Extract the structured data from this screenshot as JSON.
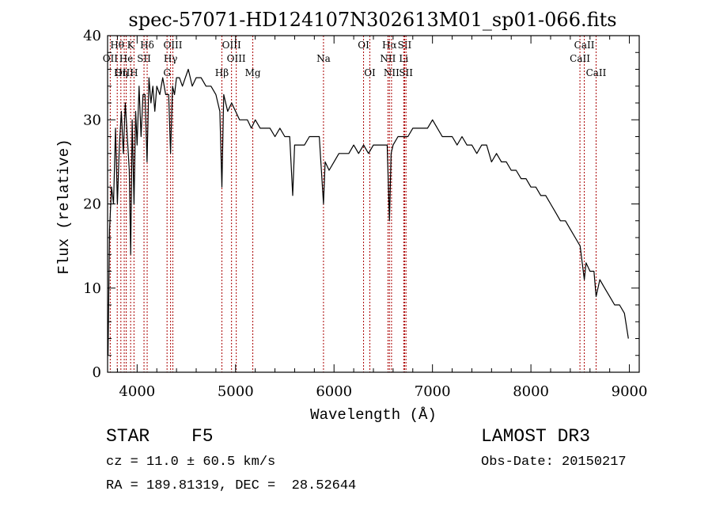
{
  "chart_data": {
    "type": "line",
    "title": "spec-57071-HD124107N302613M01_sp01-066.fits",
    "xlabel": "Wavelength (Å)",
    "ylabel": "Flux (relative)",
    "xlim": [
      3700,
      9100
    ],
    "ylim": [
      0,
      40
    ],
    "xticks": [
      4000,
      5000,
      6000,
      7000,
      8000,
      9000
    ],
    "yticks": [
      0,
      10,
      20,
      30,
      40
    ],
    "line_color": "#000000",
    "marker_color": "#aa0000",
    "series": [
      {
        "name": "spectrum",
        "x": [
          3705,
          3720,
          3740,
          3760,
          3780,
          3800,
          3820,
          3840,
          3860,
          3880,
          3900,
          3920,
          3935,
          3950,
          3968,
          3985,
          4000,
          4020,
          4040,
          4060,
          4080,
          4101,
          4120,
          4140,
          4160,
          4180,
          4200,
          4230,
          4260,
          4290,
          4320,
          4340,
          4360,
          4380,
          4400,
          4430,
          4460,
          4490,
          4520,
          4560,
          4600,
          4650,
          4700,
          4750,
          4800,
          4840,
          4861,
          4880,
          4920,
          4960,
          5000,
          5040,
          5080,
          5120,
          5160,
          5200,
          5250,
          5300,
          5350,
          5400,
          5450,
          5500,
          5550,
          5580,
          5600,
          5650,
          5700,
          5750,
          5800,
          5850,
          5893,
          5910,
          5950,
          6000,
          6050,
          6100,
          6150,
          6200,
          6250,
          6300,
          6350,
          6400,
          6450,
          6500,
          6540,
          6563,
          6580,
          6600,
          6650,
          6700,
          6750,
          6800,
          6850,
          6900,
          6950,
          7000,
          7050,
          7100,
          7150,
          7200,
          7250,
          7300,
          7350,
          7400,
          7450,
          7500,
          7550,
          7600,
          7650,
          7700,
          7750,
          7800,
          7850,
          7900,
          7950,
          8000,
          8050,
          8100,
          8150,
          8200,
          8250,
          8300,
          8350,
          8400,
          8450,
          8500,
          8542,
          8560,
          8600,
          8640,
          8662,
          8700,
          8750,
          8800,
          8850,
          8900,
          8950,
          8990
        ],
        "values": [
          2,
          17,
          22,
          20,
          29,
          20,
          27,
          31,
          26,
          32,
          28,
          24,
          14,
          30,
          20,
          31,
          27,
          34,
          28,
          33,
          33,
          25,
          35,
          32,
          34,
          31,
          34,
          33,
          35,
          33,
          33,
          26,
          34,
          33,
          35,
          35,
          34,
          35,
          36,
          34,
          35,
          35,
          34,
          34,
          33,
          31,
          22,
          33,
          31,
          32,
          31,
          30,
          30,
          30,
          29,
          30,
          29,
          29,
          29,
          28,
          29,
          28,
          28,
          21,
          27,
          27,
          27,
          28,
          28,
          28,
          20,
          25,
          24,
          25,
          26,
          26,
          26,
          27,
          26,
          27,
          26,
          27,
          27,
          27,
          27,
          18,
          26,
          27,
          28,
          28,
          28,
          29,
          29,
          29,
          29,
          30,
          29,
          28,
          28,
          28,
          27,
          28,
          27,
          27,
          26,
          27,
          27,
          25,
          26,
          25,
          25,
          24,
          24,
          23,
          23,
          22,
          22,
          21,
          21,
          20,
          19,
          18,
          18,
          17,
          16,
          15,
          11,
          13,
          12,
          12,
          9,
          11,
          10,
          9,
          8,
          8,
          7,
          4
        ]
      }
    ],
    "lines": [
      {
        "label": "Hθ",
        "x": 3798,
        "row": 1
      },
      {
        "label": "OII",
        "x": 3727,
        "row": 2
      },
      {
        "label": "OIII",
        "x": 3869,
        "row": 3
      },
      {
        "label": "Hη",
        "x": 3835,
        "row": 3
      },
      {
        "label": "K",
        "x": 3934,
        "row": 1
      },
      {
        "label": "He",
        "x": 3889,
        "row": 2
      },
      {
        "label": "H",
        "x": 3968,
        "row": 3
      },
      {
        "label": "SII",
        "x": 4070,
        "row": 2
      },
      {
        "label": "Hδ",
        "x": 4102,
        "row": 1
      },
      {
        "label": "G",
        "x": 4304,
        "row": 3
      },
      {
        "label": "OIII",
        "x": 4363,
        "row": 1
      },
      {
        "label": "Hγ",
        "x": 4340,
        "row": 2
      },
      {
        "label": "Hβ",
        "x": 4861,
        "row": 3
      },
      {
        "label": "OIII",
        "x": 4959,
        "row": 1
      },
      {
        "label": "OIII",
        "x": 5007,
        "row": 2
      },
      {
        "label": "Mg",
        "x": 5175,
        "row": 3
      },
      {
        "label": "Na",
        "x": 5893,
        "row": 2
      },
      {
        "label": "OI",
        "x": 6300,
        "row": 1
      },
      {
        "label": "OI",
        "x": 6364,
        "row": 3
      },
      {
        "label": "Hα",
        "x": 6563,
        "row": 1
      },
      {
        "label": "NII",
        "x": 6548,
        "row": 2
      },
      {
        "label": "NII",
        "x": 6584,
        "row": 3
      },
      {
        "label": "SII",
        "x": 6717,
        "row": 1
      },
      {
        "label": "Li",
        "x": 6708,
        "row": 2
      },
      {
        "label": "SII",
        "x": 6731,
        "row": 3
      },
      {
        "label": "CaII",
        "x": 8542,
        "row": 1
      },
      {
        "label": "CaII",
        "x": 8498,
        "row": 2
      },
      {
        "label": "CaII",
        "x": 8662,
        "row": 3
      }
    ]
  },
  "info": {
    "object_class": "STAR",
    "subclass": "F5",
    "survey": "LAMOST DR3",
    "cz": "cz = 11.0 ± 60.5 km/s",
    "obs_date": "Obs-Date: 20150217",
    "coords": "RA = 189.81319, DEC =  28.52644"
  }
}
